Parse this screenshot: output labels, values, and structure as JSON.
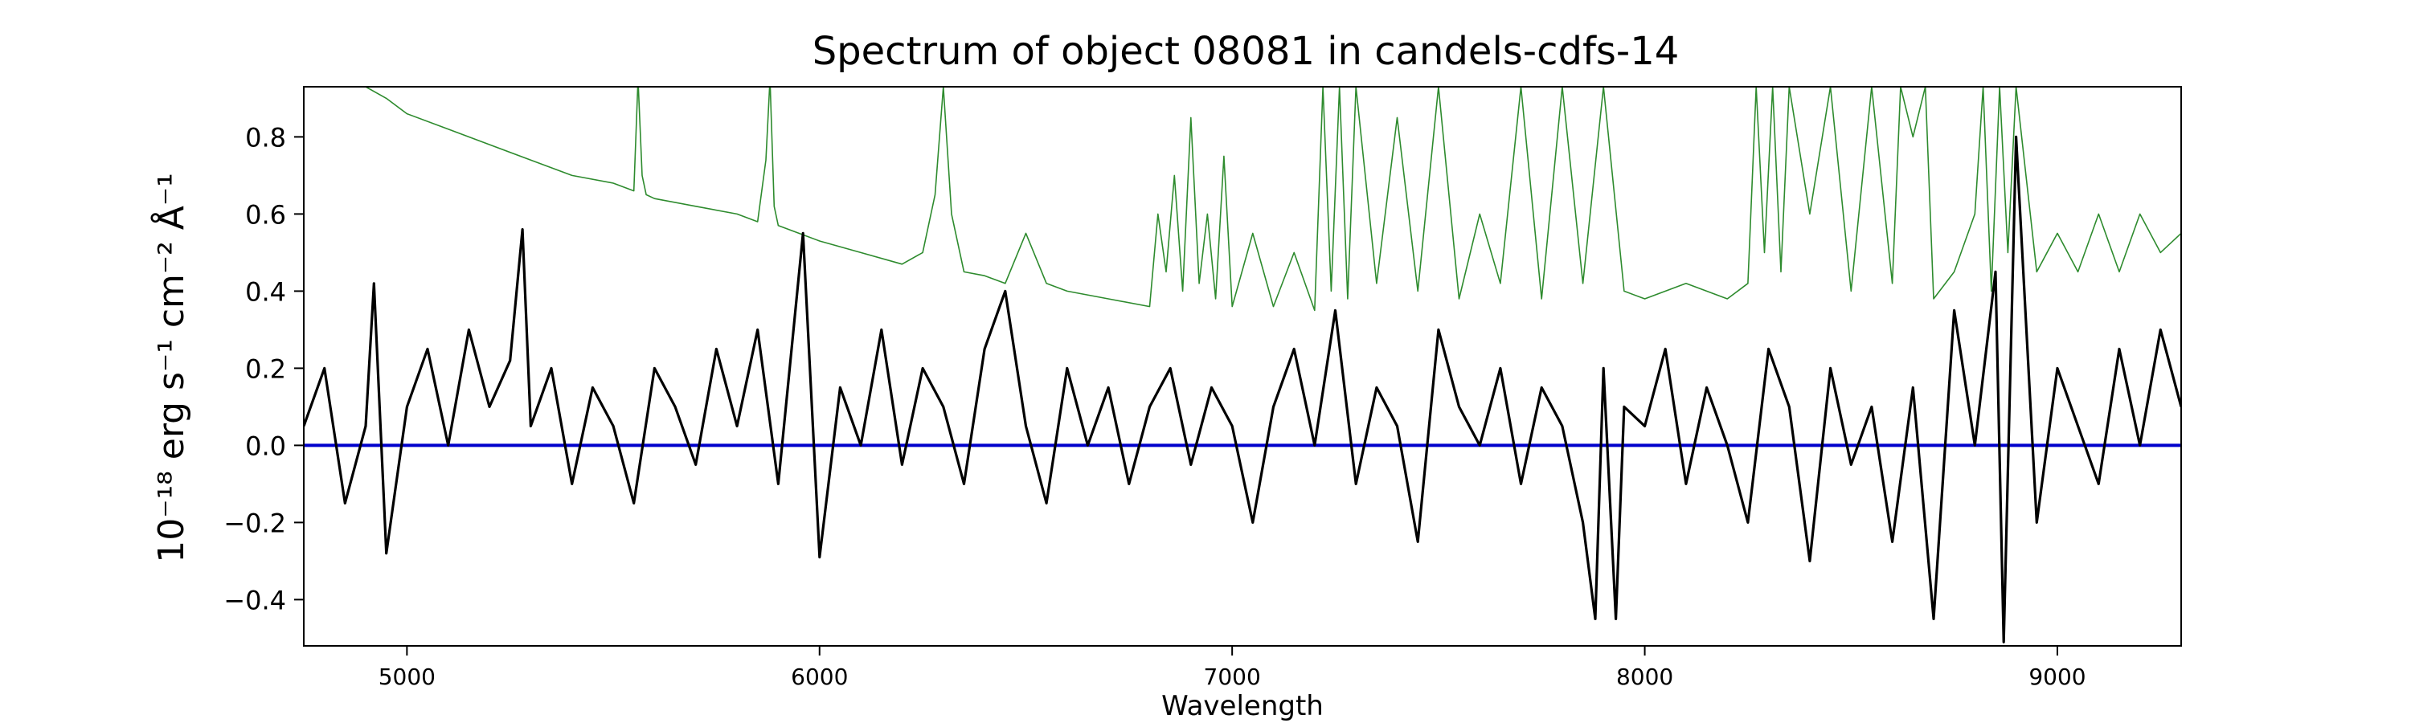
{
  "chart_data": {
    "type": "line",
    "title": "Spectrum of object 08081 in candels-cdfs-14",
    "xlabel": "Wavelength",
    "ylabel": "10⁻¹⁸ erg s⁻¹ cm⁻² Å⁻¹",
    "xlim": [
      4750,
      9300
    ],
    "ylim": [
      -0.52,
      0.93
    ],
    "x_ticks": [
      5000,
      6000,
      7000,
      8000,
      9000
    ],
    "y_ticks": [
      -0.4,
      -0.2,
      0.0,
      0.2,
      0.4,
      0.6,
      0.8
    ],
    "x_tick_labels": [
      "5000",
      "6000",
      "7000",
      "8000",
      "9000"
    ],
    "y_tick_labels": [
      "−0.4",
      "−0.2",
      "0.0",
      "0.2",
      "0.4",
      "0.6",
      "0.8"
    ],
    "grid": false,
    "legend": "none",
    "series": [
      {
        "role": "flux",
        "color": "#000000",
        "x": [
          4750,
          4800,
          4850,
          4900,
          4920,
          4950,
          5000,
          5050,
          5100,
          5150,
          5200,
          5250,
          5280,
          5300,
          5350,
          5400,
          5450,
          5500,
          5550,
          5600,
          5650,
          5700,
          5750,
          5800,
          5850,
          5900,
          5960,
          6000,
          6050,
          6100,
          6150,
          6200,
          6250,
          6300,
          6350,
          6400,
          6450,
          6500,
          6550,
          6600,
          6650,
          6700,
          6750,
          6800,
          6850,
          6900,
          6950,
          7000,
          7050,
          7100,
          7150,
          7200,
          7250,
          7300,
          7350,
          7400,
          7450,
          7500,
          7550,
          7600,
          7650,
          7700,
          7750,
          7800,
          7850,
          7880,
          7900,
          7930,
          7950,
          8000,
          8050,
          8100,
          8150,
          8200,
          8250,
          8300,
          8350,
          8400,
          8450,
          8500,
          8550,
          8600,
          8650,
          8700,
          8750,
          8800,
          8850,
          8870,
          8900,
          8950,
          9000,
          9050,
          9100,
          9150,
          9200,
          9250,
          9300
        ],
        "y": [
          0.05,
          0.2,
          -0.15,
          0.05,
          0.42,
          -0.28,
          0.1,
          0.25,
          0.0,
          0.3,
          0.1,
          0.22,
          0.56,
          0.05,
          0.2,
          -0.1,
          0.15,
          0.05,
          -0.15,
          0.2,
          0.1,
          -0.05,
          0.25,
          0.05,
          0.3,
          -0.1,
          0.55,
          -0.29,
          0.15,
          0.0,
          0.3,
          -0.05,
          0.2,
          0.1,
          -0.1,
          0.25,
          0.4,
          0.05,
          -0.15,
          0.2,
          0.0,
          0.15,
          -0.1,
          0.1,
          0.2,
          -0.05,
          0.15,
          0.05,
          -0.2,
          0.1,
          0.25,
          0.0,
          0.35,
          -0.1,
          0.15,
          0.05,
          -0.25,
          0.3,
          0.1,
          0.0,
          0.2,
          -0.1,
          0.15,
          0.05,
          -0.2,
          -0.45,
          0.2,
          -0.45,
          0.1,
          0.05,
          0.25,
          -0.1,
          0.15,
          0.0,
          -0.2,
          0.25,
          0.1,
          -0.3,
          0.2,
          -0.05,
          0.1,
          -0.25,
          0.15,
          -0.45,
          0.35,
          0.0,
          0.45,
          -0.51,
          0.8,
          -0.2,
          0.2,
          0.05,
          -0.1,
          0.25,
          0.0,
          0.3,
          0.1
        ]
      },
      {
        "role": "error",
        "color": "#2e8b2e",
        "x": [
          4900,
          4950,
          5000,
          5100,
          5200,
          5300,
          5400,
          5500,
          5550,
          5560,
          5570,
          5580,
          5600,
          5700,
          5800,
          5850,
          5870,
          5880,
          5890,
          5900,
          5950,
          6000,
          6100,
          6200,
          6250,
          6280,
          6300,
          6320,
          6350,
          6400,
          6450,
          6500,
          6550,
          6600,
          6700,
          6800,
          6820,
          6840,
          6860,
          6880,
          6900,
          6920,
          6940,
          6960,
          6980,
          7000,
          7050,
          7100,
          7150,
          7200,
          7220,
          7240,
          7260,
          7280,
          7300,
          7350,
          7400,
          7450,
          7500,
          7550,
          7600,
          7650,
          7700,
          7750,
          7800,
          7850,
          7900,
          7950,
          8000,
          8100,
          8200,
          8250,
          8270,
          8290,
          8310,
          8330,
          8350,
          8400,
          8450,
          8500,
          8550,
          8600,
          8620,
          8650,
          8680,
          8700,
          8750,
          8800,
          8820,
          8840,
          8860,
          8880,
          8900,
          8950,
          9000,
          9050,
          9100,
          9150,
          9200,
          9250,
          9300
        ],
        "y": [
          0.93,
          0.9,
          0.86,
          0.82,
          0.78,
          0.74,
          0.7,
          0.68,
          0.66,
          0.95,
          0.7,
          0.65,
          0.64,
          0.62,
          0.6,
          0.58,
          0.74,
          0.95,
          0.62,
          0.57,
          0.55,
          0.53,
          0.5,
          0.47,
          0.5,
          0.65,
          0.93,
          0.6,
          0.45,
          0.44,
          0.42,
          0.55,
          0.42,
          0.4,
          0.38,
          0.36,
          0.6,
          0.45,
          0.7,
          0.4,
          0.85,
          0.42,
          0.6,
          0.38,
          0.75,
          0.36,
          0.55,
          0.36,
          0.5,
          0.35,
          0.93,
          0.4,
          0.93,
          0.38,
          0.93,
          0.42,
          0.85,
          0.4,
          0.93,
          0.38,
          0.6,
          0.42,
          0.93,
          0.38,
          0.93,
          0.42,
          0.93,
          0.4,
          0.38,
          0.42,
          0.38,
          0.42,
          0.93,
          0.5,
          0.93,
          0.45,
          0.93,
          0.6,
          0.93,
          0.4,
          0.93,
          0.42,
          0.93,
          0.8,
          0.93,
          0.38,
          0.45,
          0.6,
          0.93,
          0.4,
          0.93,
          0.5,
          0.93,
          0.45,
          0.55,
          0.45,
          0.6,
          0.45,
          0.6,
          0.5,
          0.55
        ]
      },
      {
        "role": "model",
        "color": "#0000cc",
        "x": [
          4750,
          9300
        ],
        "y": [
          0.0,
          0.0
        ]
      }
    ]
  }
}
